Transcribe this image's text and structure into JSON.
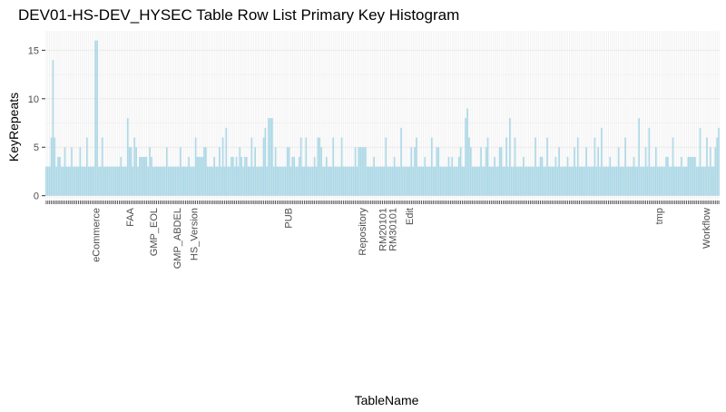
{
  "chart_data": {
    "type": "bar",
    "title": "DEV01-HS-DEV_HYSEC Table Row List Primary Key Histogram",
    "xlabel": "TableName",
    "ylabel": "KeyRepeats",
    "ylim": [
      -0.5,
      17
    ],
    "yticks": [
      0,
      5,
      10,
      15
    ],
    "grid": true,
    "legend": "none",
    "bar_color": "#add8e6",
    "panel_color": "#ffffff",
    "grid_color": "#ebebeb",
    "values": [
      3,
      3,
      3,
      6,
      14,
      6,
      3,
      4,
      4,
      3,
      3,
      5,
      3,
      3,
      3,
      5,
      3,
      3,
      3,
      3,
      5,
      3,
      3,
      3,
      6,
      3,
      3,
      3,
      3,
      16,
      16,
      3,
      3,
      6,
      3,
      3,
      3,
      3,
      3,
      3,
      3,
      3,
      3,
      3,
      4,
      3,
      3,
      3,
      8,
      5,
      5,
      3,
      6,
      5,
      3,
      4,
      4,
      4,
      4,
      4,
      3,
      5,
      4,
      3,
      3,
      3,
      3,
      3,
      3,
      3,
      3,
      5,
      3,
      3,
      3,
      3,
      3,
      3,
      3,
      5,
      3,
      3,
      3,
      3,
      4,
      3,
      3,
      3,
      6,
      4,
      4,
      4,
      4,
      5,
      5,
      3,
      3,
      3,
      3,
      4,
      3,
      3,
      5,
      3,
      6,
      3,
      7,
      3,
      3,
      4,
      4,
      3,
      4,
      3,
      5,
      4,
      3,
      4,
      4,
      3,
      3,
      6,
      3,
      5,
      3,
      3,
      3,
      3,
      6,
      7,
      3,
      8,
      8,
      8,
      3,
      5,
      3,
      3,
      3,
      3,
      3,
      3,
      5,
      5,
      3,
      4,
      4,
      3,
      3,
      4,
      6,
      3,
      3,
      6,
      3,
      3,
      3,
      3,
      4,
      3,
      6,
      6,
      5,
      3,
      3,
      4,
      3,
      3,
      3,
      6,
      3,
      3,
      3,
      3,
      6,
      3,
      3,
      3,
      3,
      3,
      3,
      3,
      5,
      3,
      5,
      5,
      5,
      5,
      5,
      3,
      3,
      3,
      3,
      4,
      3,
      3,
      3,
      3,
      3,
      3,
      6,
      3,
      3,
      3,
      3,
      4,
      3,
      3,
      3,
      7,
      3,
      3,
      3,
      3,
      3,
      5,
      3,
      5,
      6,
      3,
      3,
      3,
      3,
      4,
      3,
      3,
      3,
      6,
      3,
      3,
      5,
      5,
      3,
      3,
      3,
      3,
      3,
      4,
      3,
      4,
      3,
      3,
      3,
      4,
      5,
      3,
      3,
      8,
      9,
      6,
      5,
      3,
      3,
      3,
      3,
      3,
      5,
      3,
      3,
      5,
      6,
      3,
      3,
      3,
      4,
      3,
      3,
      5,
      5,
      3,
      3,
      6,
      3,
      8,
      3,
      3,
      6,
      3,
      3,
      3,
      3,
      4,
      3,
      3,
      3,
      3,
      3,
      3,
      6,
      3,
      3,
      4,
      4,
      3,
      3,
      6,
      3,
      3,
      3,
      3,
      4,
      3,
      5,
      3,
      3,
      3,
      3,
      4,
      3,
      3,
      3,
      5,
      3,
      6,
      3,
      3,
      3,
      3,
      5,
      3,
      3,
      3,
      3,
      6,
      3,
      5,
      3,
      7,
      3,
      3,
      3,
      3,
      4,
      3,
      3,
      3,
      3,
      5,
      3,
      3,
      3,
      6,
      3,
      3,
      3,
      3,
      4,
      3,
      3,
      8,
      3,
      3,
      3,
      5,
      3,
      7,
      3,
      3,
      3,
      5,
      3,
      3,
      3,
      3,
      3,
      4,
      4,
      3,
      3,
      6,
      3,
      3,
      3,
      3,
      4,
      3,
      3,
      3,
      4,
      4,
      4,
      4,
      4,
      3,
      3,
      7,
      3,
      3,
      3,
      6,
      3,
      5,
      3,
      3,
      5,
      6,
      7
    ],
    "categories_shown": [
      "eCommerce",
      "FAA",
      "GMP_EOL",
      "GMP_ABDEL",
      "HS_Version",
      "PUB",
      "Repository",
      "RM20101",
      "RM30101",
      "Edit",
      "tmp",
      "Workflow"
    ]
  }
}
